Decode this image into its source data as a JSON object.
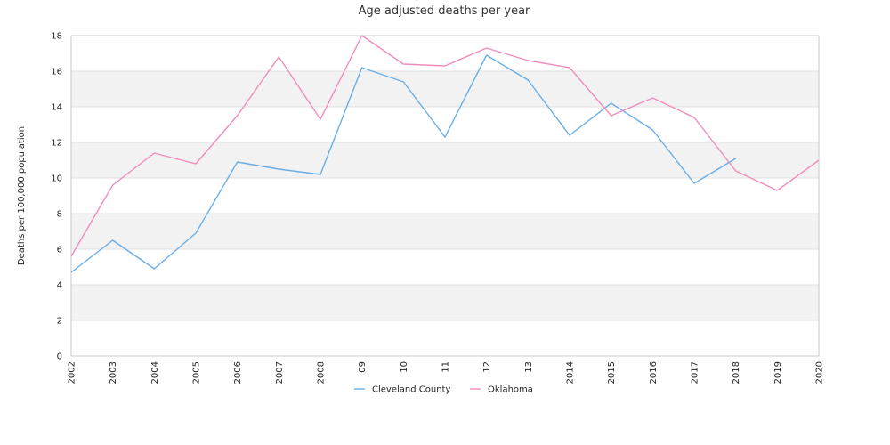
{
  "chart_data": {
    "type": "line",
    "title": "Age adjusted deaths per year",
    "xlabel": "",
    "ylabel": "Deaths per 100,000 population",
    "ylim": [
      0,
      18
    ],
    "yticks": [
      "0",
      "2",
      "4",
      "6",
      "8",
      "10",
      "12",
      "14",
      "16",
      "18"
    ],
    "categories": [
      "2002",
      "2003",
      "2004",
      "2005",
      "2006",
      "2007",
      "2008",
      "09",
      "10",
      "11",
      "12",
      "13",
      "2014",
      "2015",
      "2016",
      "2017",
      "2018",
      "2019",
      "2020"
    ],
    "grid": true,
    "legend_position": "bottom",
    "series": [
      {
        "name": "Cleveland County",
        "color": "#6aaee8",
        "values": [
          4.7,
          6.5,
          4.9,
          6.9,
          10.9,
          10.5,
          10.2,
          16.2,
          15.4,
          12.3,
          16.9,
          15.5,
          12.4,
          14.2,
          12.7,
          9.7,
          11.1,
          null,
          null
        ]
      },
      {
        "name": "Oklahoma",
        "color": "#f08cbc",
        "values": [
          5.6,
          9.6,
          11.4,
          10.8,
          13.5,
          16.8,
          13.3,
          18.0,
          16.4,
          16.3,
          17.3,
          16.6,
          16.2,
          13.5,
          14.5,
          13.4,
          10.4,
          9.3,
          11.0
        ]
      }
    ]
  }
}
